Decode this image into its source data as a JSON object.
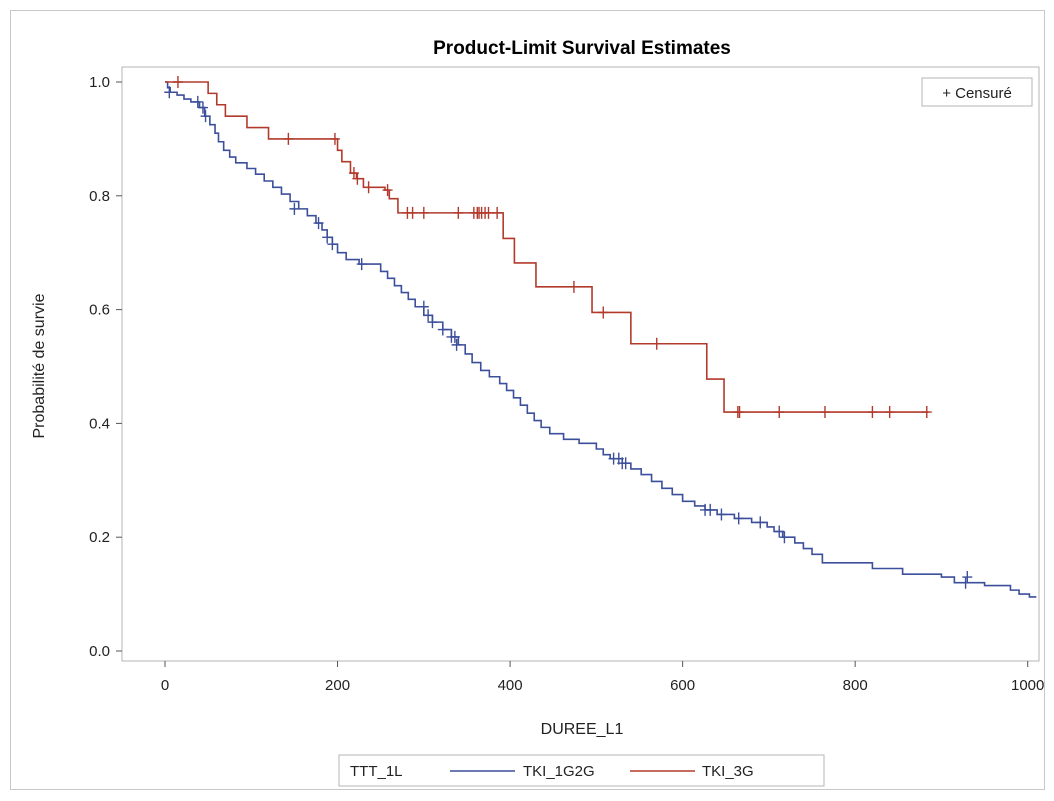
{
  "chart_data": {
    "type": "line",
    "title": "Product-Limit Survival Estimates",
    "xlabel": "DUREE_L1",
    "ylabel": "Probabilité de survie",
    "xlim": [
      0,
      1000
    ],
    "ylim": [
      0,
      1.0
    ],
    "x_ticks": [
      "0",
      "200",
      "400",
      "600",
      "800",
      "1000"
    ],
    "y_ticks": [
      "0.0",
      "0.2",
      "0.4",
      "0.6",
      "0.8",
      "1.0"
    ],
    "grid": false,
    "censor_legend": "+ Censuré",
    "legend_title": "TTT_1L",
    "legend_placement": "bottom",
    "series": [
      {
        "name": "TKI_1G2G",
        "color": "#3c4f9b",
        "steps": [
          [
            0,
            1.0
          ],
          [
            3,
            0.99
          ],
          [
            6,
            0.982
          ],
          [
            14,
            0.977
          ],
          [
            22,
            0.97
          ],
          [
            30,
            0.965
          ],
          [
            40,
            0.955
          ],
          [
            46,
            0.94
          ],
          [
            52,
            0.925
          ],
          [
            58,
            0.91
          ],
          [
            62,
            0.895
          ],
          [
            68,
            0.88
          ],
          [
            75,
            0.868
          ],
          [
            82,
            0.858
          ],
          [
            95,
            0.848
          ],
          [
            105,
            0.838
          ],
          [
            115,
            0.826
          ],
          [
            125,
            0.815
          ],
          [
            135,
            0.803
          ],
          [
            145,
            0.79
          ],
          [
            155,
            0.777
          ],
          [
            165,
            0.765
          ],
          [
            175,
            0.752
          ],
          [
            182,
            0.74
          ],
          [
            188,
            0.727
          ],
          [
            194,
            0.715
          ],
          [
            200,
            0.7
          ],
          [
            210,
            0.688
          ],
          [
            225,
            0.68
          ],
          [
            250,
            0.667
          ],
          [
            258,
            0.655
          ],
          [
            266,
            0.642
          ],
          [
            274,
            0.63
          ],
          [
            282,
            0.618
          ],
          [
            290,
            0.605
          ],
          [
            300,
            0.59
          ],
          [
            310,
            0.578
          ],
          [
            322,
            0.565
          ],
          [
            332,
            0.552
          ],
          [
            340,
            0.538
          ],
          [
            348,
            0.522
          ],
          [
            356,
            0.507
          ],
          [
            366,
            0.493
          ],
          [
            376,
            0.482
          ],
          [
            388,
            0.47
          ],
          [
            396,
            0.458
          ],
          [
            404,
            0.445
          ],
          [
            412,
            0.432
          ],
          [
            420,
            0.418
          ],
          [
            428,
            0.405
          ],
          [
            436,
            0.393
          ],
          [
            446,
            0.382
          ],
          [
            462,
            0.372
          ],
          [
            480,
            0.365
          ],
          [
            500,
            0.355
          ],
          [
            508,
            0.345
          ],
          [
            516,
            0.338
          ],
          [
            530,
            0.33
          ],
          [
            540,
            0.32
          ],
          [
            552,
            0.31
          ],
          [
            564,
            0.298
          ],
          [
            576,
            0.286
          ],
          [
            588,
            0.275
          ],
          [
            600,
            0.263
          ],
          [
            614,
            0.255
          ],
          [
            626,
            0.248
          ],
          [
            640,
            0.24
          ],
          [
            660,
            0.233
          ],
          [
            680,
            0.226
          ],
          [
            698,
            0.218
          ],
          [
            706,
            0.21
          ],
          [
            716,
            0.2
          ],
          [
            730,
            0.19
          ],
          [
            740,
            0.18
          ],
          [
            750,
            0.17
          ],
          [
            762,
            0.155
          ],
          [
            820,
            0.145
          ],
          [
            855,
            0.135
          ],
          [
            900,
            0.13
          ],
          [
            915,
            0.12
          ],
          [
            950,
            0.115
          ],
          [
            980,
            0.107
          ],
          [
            990,
            0.1
          ],
          [
            1002,
            0.095
          ]
        ],
        "end_x": 1010,
        "censored": [
          [
            5,
            0.982
          ],
          [
            38,
            0.965
          ],
          [
            44,
            0.955
          ],
          [
            47,
            0.94
          ],
          [
            150,
            0.777
          ],
          [
            178,
            0.752
          ],
          [
            188,
            0.727
          ],
          [
            194,
            0.715
          ],
          [
            228,
            0.68
          ],
          [
            300,
            0.605
          ],
          [
            305,
            0.59
          ],
          [
            310,
            0.578
          ],
          [
            322,
            0.565
          ],
          [
            332,
            0.552
          ],
          [
            336,
            0.552
          ],
          [
            338,
            0.538
          ],
          [
            520,
            0.338
          ],
          [
            526,
            0.338
          ],
          [
            530,
            0.33
          ],
          [
            534,
            0.33
          ],
          [
            626,
            0.248
          ],
          [
            632,
            0.248
          ],
          [
            645,
            0.24
          ],
          [
            665,
            0.233
          ],
          [
            690,
            0.226
          ],
          [
            712,
            0.21
          ],
          [
            718,
            0.2
          ],
          [
            928,
            0.12
          ],
          [
            930,
            0.13
          ]
        ]
      },
      {
        "name": "TKI_3G",
        "color": "#b23a2c",
        "steps": [
          [
            0,
            1.0
          ],
          [
            50,
            0.98
          ],
          [
            60,
            0.96
          ],
          [
            70,
            0.94
          ],
          [
            95,
            0.92
          ],
          [
            120,
            0.9
          ],
          [
            200,
            0.88
          ],
          [
            205,
            0.86
          ],
          [
            215,
            0.84
          ],
          [
            222,
            0.83
          ],
          [
            230,
            0.815
          ],
          [
            255,
            0.81
          ],
          [
            260,
            0.795
          ],
          [
            270,
            0.77
          ],
          [
            392,
            0.725
          ],
          [
            405,
            0.682
          ],
          [
            430,
            0.64
          ],
          [
            495,
            0.595
          ],
          [
            540,
            0.54
          ],
          [
            628,
            0.478
          ],
          [
            648,
            0.42
          ]
        ],
        "end_x": 885,
        "censored": [
          [
            15,
            1.0
          ],
          [
            143,
            0.9
          ],
          [
            197,
            0.9
          ],
          [
            219,
            0.84
          ],
          [
            223,
            0.83
          ],
          [
            236,
            0.815
          ],
          [
            258,
            0.81
          ],
          [
            281,
            0.77
          ],
          [
            287,
            0.77
          ],
          [
            300,
            0.77
          ],
          [
            340,
            0.77
          ],
          [
            358,
            0.77
          ],
          [
            362,
            0.77
          ],
          [
            364,
            0.77
          ],
          [
            367,
            0.77
          ],
          [
            371,
            0.77
          ],
          [
            375,
            0.77
          ],
          [
            385,
            0.77
          ],
          [
            474,
            0.64
          ],
          [
            508,
            0.595
          ],
          [
            570,
            0.54
          ],
          [
            664,
            0.42
          ],
          [
            666,
            0.42
          ],
          [
            712,
            0.42
          ],
          [
            765,
            0.42
          ],
          [
            820,
            0.42
          ],
          [
            840,
            0.42
          ],
          [
            883,
            0.42
          ]
        ]
      }
    ]
  }
}
